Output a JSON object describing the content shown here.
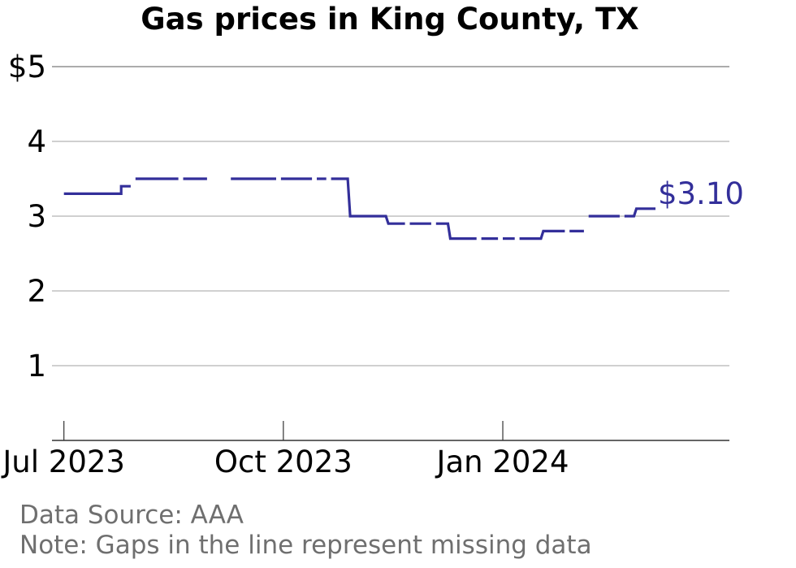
{
  "chart_data": {
    "type": "line",
    "title": "Gas prices in King County, TX",
    "xlabel": "",
    "ylabel": "",
    "ylim": [
      0,
      5
    ],
    "xlim": [
      "2023-06-26",
      "2024-04-05"
    ],
    "y_ticks": [
      {
        "value": 5,
        "label": "$5"
      },
      {
        "value": 4,
        "label": "4"
      },
      {
        "value": 3,
        "label": "3"
      },
      {
        "value": 2,
        "label": "2"
      },
      {
        "value": 1,
        "label": "1"
      }
    ],
    "x_ticks": [
      {
        "date": "2023-07-01",
        "label": "Jul 2023"
      },
      {
        "date": "2023-10-01",
        "label": "Oct 2023"
      },
      {
        "date": "2024-01-01",
        "label": "Jan 2024"
      }
    ],
    "grid": true,
    "color": "#332f9a",
    "end_label": "$3.10",
    "series": [
      {
        "segments": [
          [
            [
              "2023-07-01",
              3.3
            ],
            [
              "2023-07-25",
              3.3
            ],
            [
              "2023-07-25",
              3.4
            ],
            [
              "2023-07-29",
              3.4
            ]
          ],
          [
            [
              "2023-07-31",
              3.5
            ],
            [
              "2023-08-18",
              3.5
            ]
          ],
          [
            [
              "2023-08-20",
              3.5
            ],
            [
              "2023-08-30",
              3.5
            ]
          ],
          [
            [
              "2023-09-09",
              3.5
            ],
            [
              "2023-09-28",
              3.5
            ]
          ],
          [
            [
              "2023-09-30",
              3.5
            ],
            [
              "2023-10-13",
              3.5
            ]
          ],
          [
            [
              "2023-10-15",
              3.5
            ],
            [
              "2023-10-19",
              3.5
            ]
          ],
          [
            [
              "2023-10-21",
              3.5
            ],
            [
              "2023-10-28",
              3.5
            ],
            [
              "2023-10-29",
              3.0
            ],
            [
              "2023-11-13",
              3.0
            ],
            [
              "2023-11-14",
              2.9
            ],
            [
              "2023-11-21",
              2.9
            ]
          ],
          [
            [
              "2023-11-23",
              2.9
            ],
            [
              "2023-12-02",
              2.9
            ]
          ],
          [
            [
              "2023-12-04",
              2.9
            ],
            [
              "2023-12-09",
              2.9
            ],
            [
              "2023-12-10",
              2.7
            ],
            [
              "2023-12-21",
              2.7
            ]
          ],
          [
            [
              "2023-12-23",
              2.7
            ],
            [
              "2023-12-30",
              2.7
            ]
          ],
          [
            [
              "2024-01-01",
              2.7
            ],
            [
              "2024-01-06",
              2.7
            ]
          ],
          [
            [
              "2024-01-08",
              2.7
            ],
            [
              "2024-01-17",
              2.7
            ],
            [
              "2024-01-18",
              2.8
            ],
            [
              "2024-01-27",
              2.8
            ]
          ],
          [
            [
              "2024-01-29",
              2.8
            ],
            [
              "2024-02-04",
              2.8
            ]
          ],
          [
            [
              "2024-02-06",
              3.0
            ],
            [
              "2024-02-19",
              3.0
            ]
          ],
          [
            [
              "2024-02-21",
              3.0
            ],
            [
              "2024-02-25",
              3.0
            ],
            [
              "2024-02-26",
              3.1
            ],
            [
              "2024-03-05",
              3.1
            ]
          ]
        ]
      }
    ]
  },
  "footer": {
    "source": "Data Source: AAA",
    "note": "Note: Gaps in the line represent missing data"
  }
}
